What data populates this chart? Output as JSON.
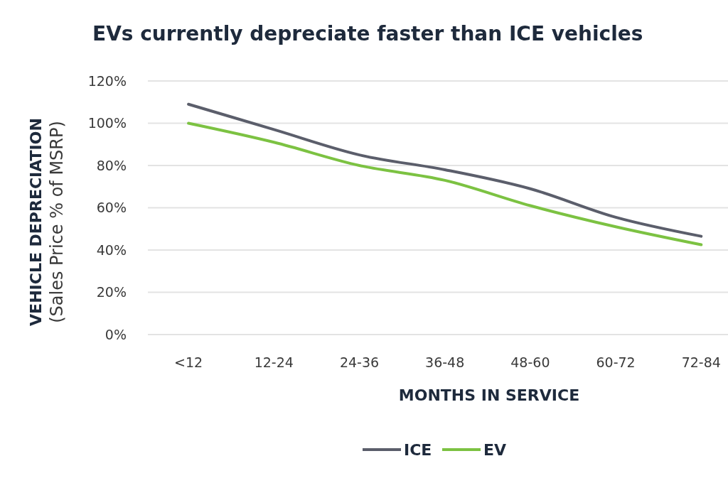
{
  "chart_data": {
    "type": "line",
    "title": "EVs currently depreciate faster than ICE vehicles",
    "xlabel": "MONTHS IN SERVICE",
    "ylabel": "VEHICLE DEPRECIATION\n(Sales Price % of MSRP)",
    "categories": [
      "<12",
      "12-24",
      "24-36",
      "36-48",
      "48-60",
      "60-72",
      "72-84"
    ],
    "series": [
      {
        "name": "ICE",
        "color": "#5b5e6b",
        "values": [
          109,
          97,
          85,
          78,
          69,
          55.5,
          46.5
        ]
      },
      {
        "name": "EV",
        "color": "#7cc242",
        "values": [
          100,
          91,
          80,
          73,
          61,
          51,
          42.5
        ]
      }
    ],
    "ylim": [
      0,
      120
    ],
    "yticks": [
      {
        "value": 0,
        "label": "0%"
      },
      {
        "value": 20,
        "label": "20%"
      },
      {
        "value": 40,
        "label": "40%"
      },
      {
        "value": 60,
        "label": "60%"
      },
      {
        "value": 80,
        "label": "80%"
      },
      {
        "value": 100,
        "label": "100%"
      },
      {
        "value": 120,
        "label": "120%"
      }
    ],
    "grid": "y",
    "legend": "bottom"
  }
}
